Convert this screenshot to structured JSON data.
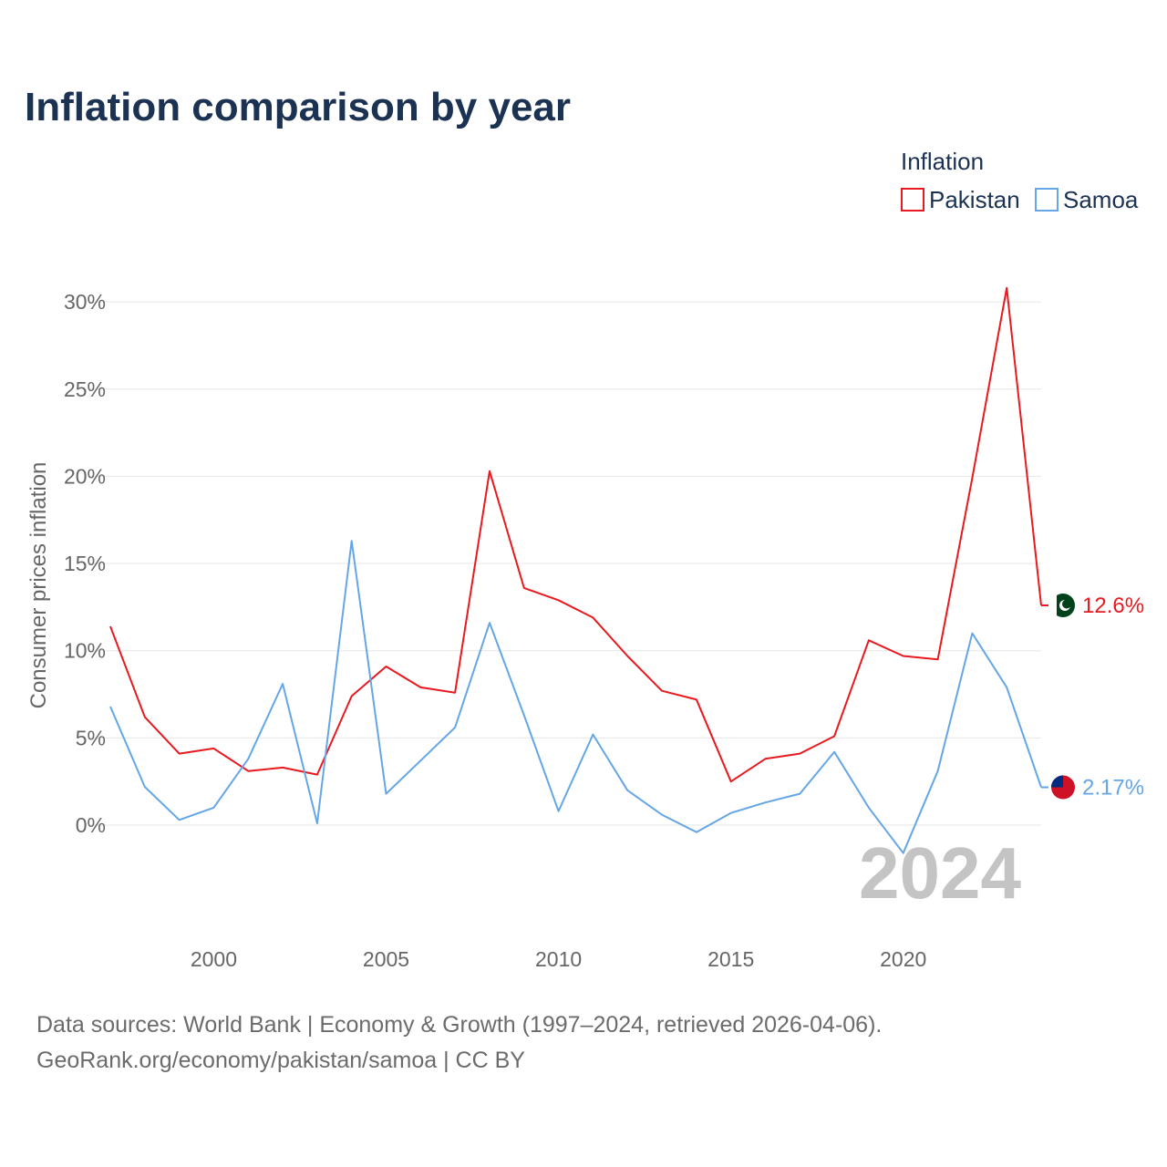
{
  "title": "Inflation comparison by year",
  "legend": {
    "title": "Inflation"
  },
  "watermark_year": "2024",
  "source_line1": "Data sources: World Bank | Economy & Growth (1997–2024, retrieved 2026-04-06).",
  "source_line2": "GeoRank.org/economy/pakistan/samoa | CC BY",
  "colors": {
    "pakistan": "#e8191f",
    "samoa": "#64a6e6"
  },
  "flags": [
    "pakistan-flag-icon",
    "samoa-flag-icon"
  ],
  "chart_data": {
    "type": "line",
    "title": "Inflation comparison by year",
    "xlabel": "",
    "ylabel": "Consumer prices inflation",
    "xlim": [
      1997,
      2024
    ],
    "ylim": [
      -3.5,
      31
    ],
    "x_ticks": [
      2000,
      2005,
      2010,
      2015,
      2020
    ],
    "y_ticks": [
      0,
      5,
      10,
      15,
      20,
      25,
      30
    ],
    "y_tick_labels": [
      "0%",
      "5%",
      "10%",
      "15%",
      "20%",
      "25%",
      "30%"
    ],
    "grid": true,
    "legend_position": "top-right",
    "x": [
      1997,
      1998,
      1999,
      2000,
      2001,
      2002,
      2003,
      2004,
      2005,
      2006,
      2007,
      2008,
      2009,
      2010,
      2011,
      2012,
      2013,
      2014,
      2015,
      2016,
      2017,
      2018,
      2019,
      2020,
      2021,
      2022,
      2023,
      2024
    ],
    "series": [
      {
        "name": "Pakistan",
        "color": "#e8191f",
        "end_label": "12.6%",
        "values": [
          11.4,
          6.2,
          4.1,
          4.4,
          3.1,
          3.3,
          2.9,
          7.4,
          9.1,
          7.9,
          7.6,
          20.3,
          13.6,
          12.9,
          11.9,
          9.7,
          7.7,
          7.2,
          2.5,
          3.8,
          4.1,
          5.1,
          10.6,
          9.7,
          9.5,
          19.9,
          30.8,
          12.6
        ]
      },
      {
        "name": "Samoa",
        "color": "#64a6e6",
        "end_label": "2.17%",
        "values": [
          6.8,
          2.2,
          0.3,
          1.0,
          3.8,
          8.1,
          0.1,
          16.3,
          1.8,
          3.7,
          5.6,
          11.6,
          6.3,
          0.8,
          5.2,
          2.0,
          0.6,
          -0.4,
          0.7,
          1.3,
          1.8,
          4.2,
          1.0,
          -1.6,
          3.1,
          11.0,
          7.9,
          2.17
        ]
      }
    ]
  }
}
